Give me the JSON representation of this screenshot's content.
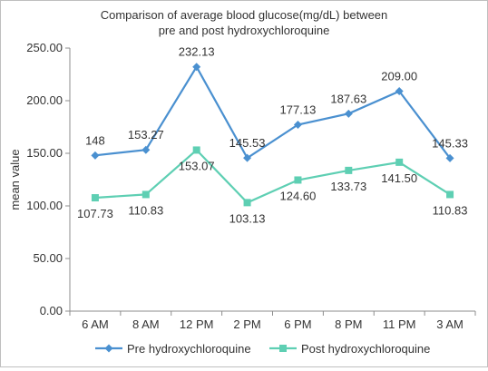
{
  "chart_data": {
    "type": "line",
    "title_lines": [
      "Comparison of average blood glucose(mg/dL) between",
      "pre and post hydroxychloroquine"
    ],
    "xlabel": "",
    "ylabel": "mean value",
    "categories": [
      "6 AM",
      "8 AM",
      "12 PM",
      "2 PM",
      "6 PM",
      "8 PM",
      "11 PM",
      "3 AM"
    ],
    "ylim": [
      0,
      250
    ],
    "yticks": [
      "0.00",
      "50.00",
      "100.00",
      "150.00",
      "200.00",
      "250.00"
    ],
    "grid": false,
    "legend_position": "bottom",
    "series": [
      {
        "name": "Pre hydroxychloroquine",
        "values": [
          148,
          153.27,
          232.13,
          145.53,
          177.13,
          187.63,
          209.0,
          145.33
        ],
        "labels": [
          "148",
          "153.27",
          "232.13",
          "145.53",
          "177.13",
          "187.63",
          "209.00",
          "145.33"
        ],
        "color": "#4a90d0",
        "marker": "diamond"
      },
      {
        "name": "Post hydroxychloroquine",
        "values": [
          107.73,
          110.83,
          153.07,
          103.13,
          124.6,
          133.73,
          141.5,
          110.83
        ],
        "labels": [
          "107.73",
          "110.83",
          "153.07",
          "103.13",
          "124.60",
          "133.73",
          "141.50",
          "110.83"
        ],
        "color": "#5ecfb3",
        "marker": "square"
      }
    ]
  }
}
